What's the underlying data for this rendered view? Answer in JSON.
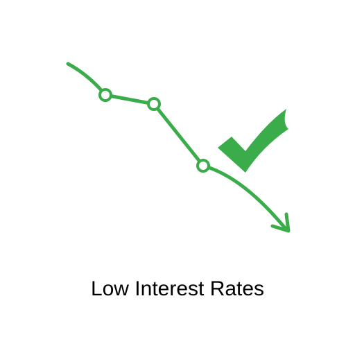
{
  "caption": "Low Interest Rates",
  "colors": {
    "accent": "#3aad4a",
    "background": "#ffffff",
    "text": "#000000"
  },
  "icons": [
    "declining-trend-line-icon",
    "checkmark-icon"
  ]
}
